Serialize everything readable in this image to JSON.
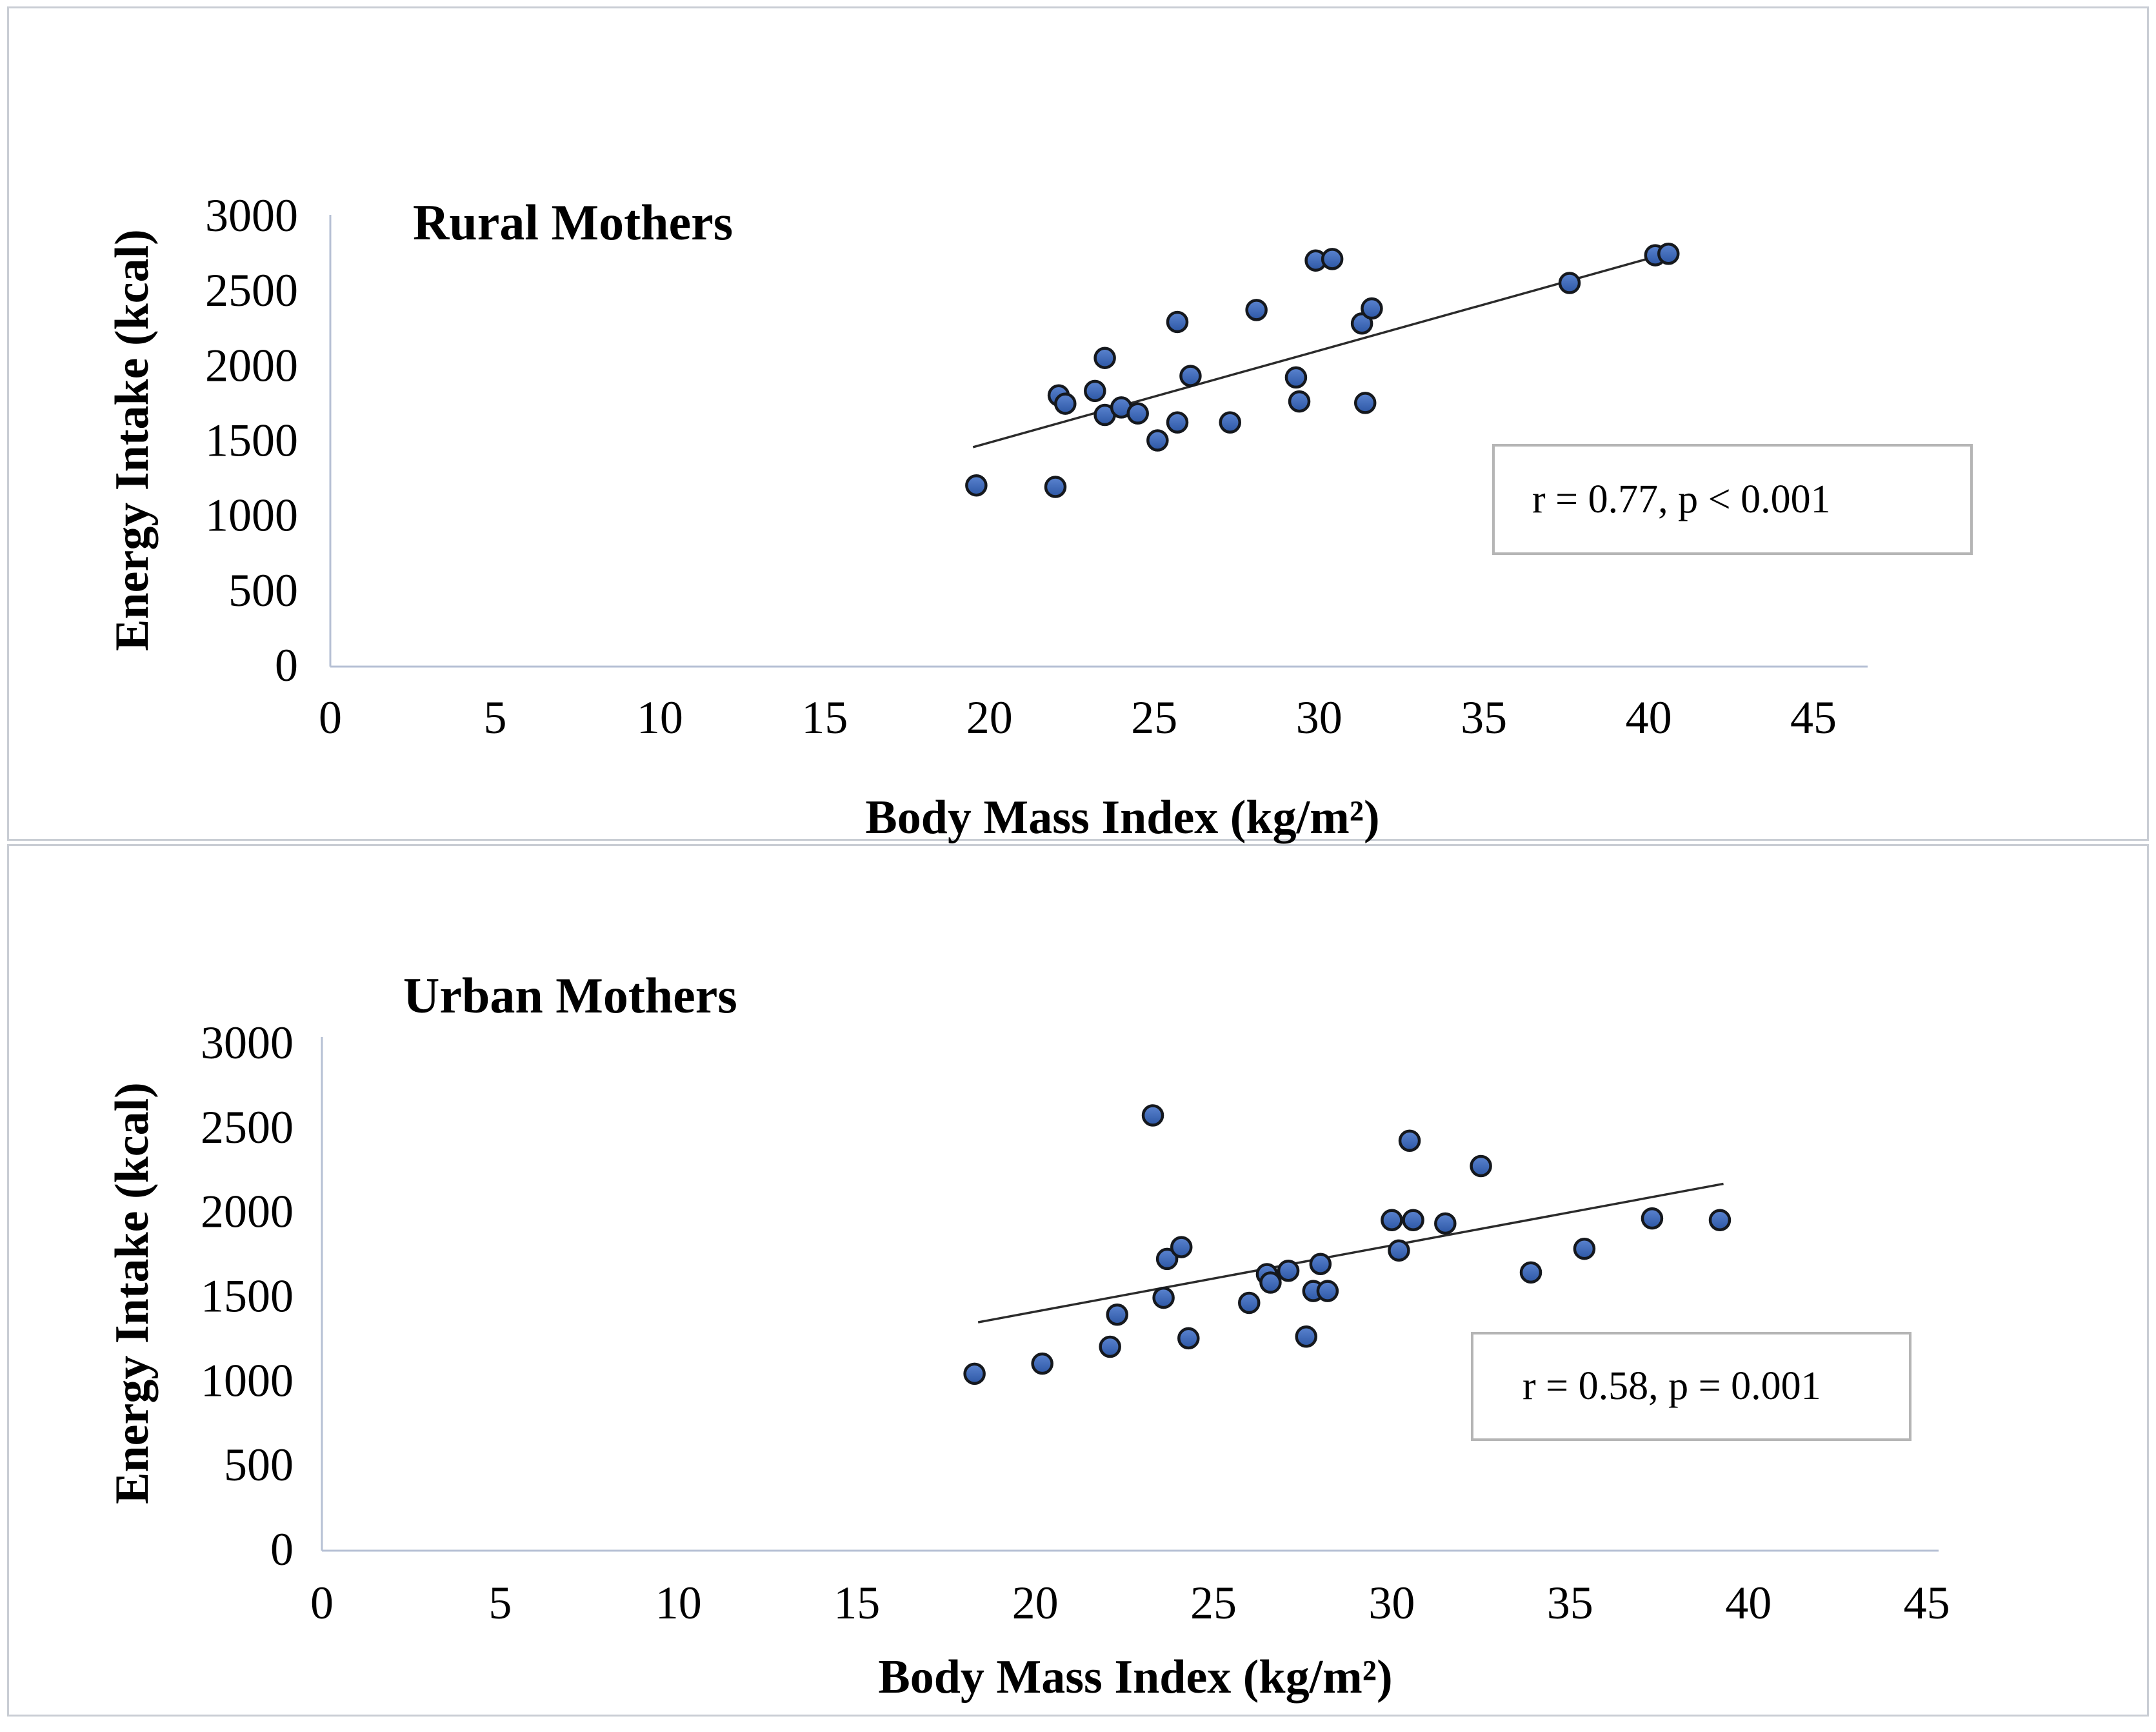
{
  "figure": {
    "background": "#ffffff",
    "panel_border_color": "#c9cdd4",
    "axis_color": "#b6c0d4",
    "text_color": "#000000",
    "point_fill_top": "#5b84d0",
    "point_fill_bottom": "#2d57a5",
    "point_stroke": "#15181d",
    "trendline_color": "#2b2b2b",
    "annotation_border_color": "#b5b5b5"
  },
  "chart_data": [
    {
      "type": "scatter",
      "title": "Rural Mothers",
      "xlabel": "Body Mass Index (kg/m²)",
      "ylabel": "Energy Intake (kcal)",
      "xlim": [
        0,
        45
      ],
      "ylim": [
        0,
        3000
      ],
      "xticks": [
        0,
        5,
        10,
        15,
        20,
        25,
        30,
        35,
        40,
        45
      ],
      "yticks": [
        0,
        500,
        1000,
        1500,
        2000,
        2500,
        3000
      ],
      "grid": "off",
      "legend": "none",
      "annotation": "r = 0.77, p < 0.001",
      "trendline": {
        "x1": 19.5,
        "y1": 1455,
        "x2": 40.6,
        "y2": 2750
      },
      "points": [
        [
          19.6,
          1200
        ],
        [
          22.0,
          1190
        ],
        [
          22.1,
          1800
        ],
        [
          22.3,
          1745
        ],
        [
          23.2,
          1830
        ],
        [
          23.5,
          2050
        ],
        [
          23.5,
          1670
        ],
        [
          24.0,
          1720
        ],
        [
          24.5,
          1680
        ],
        [
          25.1,
          1500
        ],
        [
          25.7,
          1620
        ],
        [
          25.7,
          2290
        ],
        [
          26.1,
          1930
        ],
        [
          27.3,
          1620
        ],
        [
          28.1,
          2370
        ],
        [
          29.3,
          1920
        ],
        [
          29.4,
          1760
        ],
        [
          29.9,
          2700
        ],
        [
          30.4,
          2710
        ],
        [
          31.3,
          2280
        ],
        [
          31.4,
          1750
        ],
        [
          31.6,
          2380
        ],
        [
          37.6,
          2550
        ],
        [
          40.2,
          2735
        ],
        [
          40.6,
          2745
        ]
      ]
    },
    {
      "type": "scatter",
      "title": "Urban Mothers",
      "xlabel": "Body Mass Index (kg/m²)",
      "ylabel": "Energy Intake (kcal)",
      "xlim": [
        0,
        45
      ],
      "ylim": [
        0,
        3000
      ],
      "xticks": [
        0,
        5,
        10,
        15,
        20,
        25,
        30,
        35,
        40,
        45
      ],
      "yticks": [
        0,
        500,
        1000,
        1500,
        2000,
        2500,
        3000
      ],
      "grid": "off",
      "legend": "none",
      "annotation": "r = 0.58, p = 0.001",
      "trendline": {
        "x1": 18.4,
        "y1": 1345,
        "x2": 39.3,
        "y2": 2165
      },
      "points": [
        [
          18.3,
          1040
        ],
        [
          20.2,
          1100
        ],
        [
          22.1,
          1200
        ],
        [
          22.3,
          1390
        ],
        [
          23.3,
          2570
        ],
        [
          23.6,
          1490
        ],
        [
          23.7,
          1720
        ],
        [
          24.1,
          1790
        ],
        [
          24.3,
          1250
        ],
        [
          26.0,
          1460
        ],
        [
          26.5,
          1630
        ],
        [
          26.6,
          1580
        ],
        [
          27.1,
          1650
        ],
        [
          27.6,
          1260
        ],
        [
          27.8,
          1530
        ],
        [
          28.0,
          1690
        ],
        [
          28.2,
          1530
        ],
        [
          30.0,
          1950
        ],
        [
          30.2,
          1770
        ],
        [
          30.5,
          2420
        ],
        [
          30.6,
          1950
        ],
        [
          31.5,
          1930
        ],
        [
          32.5,
          2270
        ],
        [
          33.9,
          1640
        ],
        [
          35.4,
          1780
        ],
        [
          37.3,
          1960
        ],
        [
          39.2,
          1950
        ]
      ]
    }
  ]
}
